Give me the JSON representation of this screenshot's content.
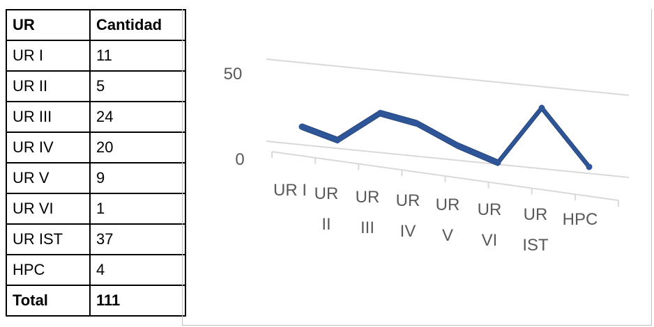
{
  "table": {
    "header": [
      "UR",
      "Cantidad"
    ],
    "rows": [
      [
        "UR I",
        "11"
      ],
      [
        "UR II",
        "5"
      ],
      [
        "UR III",
        "24"
      ],
      [
        "UR IV",
        "20"
      ],
      [
        "UR V",
        "9"
      ],
      [
        "UR VI",
        "1"
      ],
      [
        "UR IST",
        "37"
      ],
      [
        "HPC",
        "4"
      ]
    ],
    "total": [
      "Total",
      "111"
    ]
  },
  "chart_data": {
    "type": "line",
    "categories": [
      "UR I",
      "UR II",
      "UR III",
      "UR IV",
      "UR V",
      "UR VI",
      "UR IST",
      "HPC"
    ],
    "category_lines": [
      [
        "UR I"
      ],
      [
        "UR",
        "II"
      ],
      [
        "UR",
        "III"
      ],
      [
        "UR",
        "IV"
      ],
      [
        "UR",
        "V"
      ],
      [
        "UR",
        "VI"
      ],
      [
        "UR",
        "IST"
      ],
      [
        "HPC"
      ]
    ],
    "values": [
      11,
      5,
      24,
      20,
      9,
      1,
      37,
      4
    ],
    "yticks": [
      "0",
      "50"
    ],
    "ylim": [
      0,
      50
    ],
    "grid": true,
    "style": "3d-line",
    "series_color": "#2e5597",
    "title": "",
    "xlabel": "",
    "ylabel": ""
  }
}
